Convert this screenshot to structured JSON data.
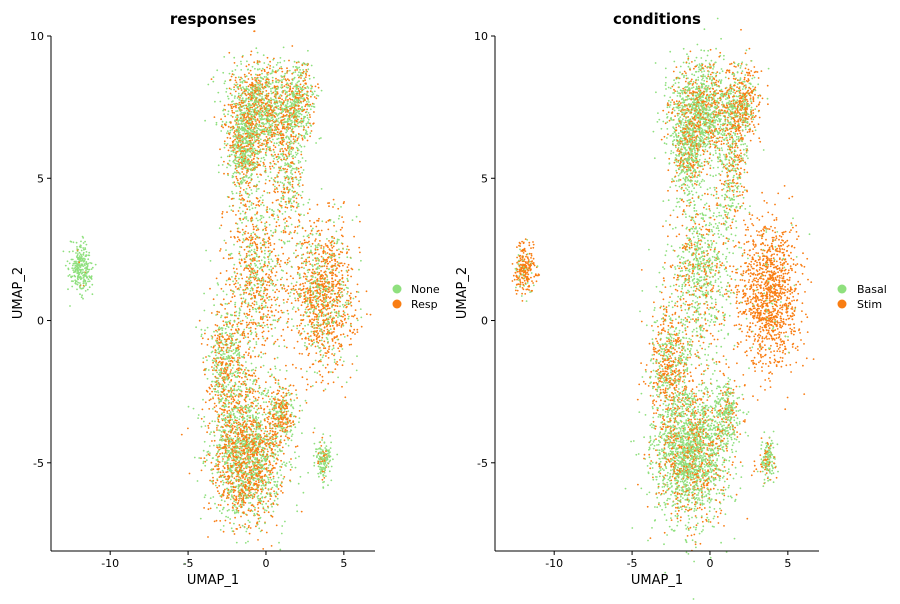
{
  "colors": {
    "green": "#8fe07e",
    "orange": "#f97d12"
  },
  "chart_data": [
    {
      "type": "scatter",
      "title": "responses",
      "xlabel": "UMAP_1",
      "ylabel": "UMAP_2",
      "xlim": [
        -13.8,
        7.0
      ],
      "ylim": [
        -8.1,
        10.0
      ],
      "xticks": [
        -10,
        -5,
        0,
        5
      ],
      "yticks": [
        -5,
        0,
        5,
        10
      ],
      "legend": "right",
      "series": [
        {
          "name": "None",
          "color": "#8fe07e"
        },
        {
          "name": "Resp",
          "color": "#f97d12"
        }
      ],
      "clusters": [
        {
          "name": "far-left island",
          "x": -11.9,
          "y": 1.8,
          "sx": 0.35,
          "sy": 0.45,
          "n": 260,
          "mix": 0.02
        },
        {
          "name": "top",
          "x": -0.4,
          "y": 7.4,
          "sx": 1.1,
          "sy": 0.85,
          "n": 1300,
          "mix": 0.45
        },
        {
          "name": "top-left lobe",
          "x": -1.4,
          "y": 5.9,
          "sx": 0.55,
          "sy": 0.8,
          "n": 520,
          "mix": 0.35
        },
        {
          "name": "top-right lobe",
          "x": 2.1,
          "y": 7.6,
          "sx": 0.55,
          "sy": 0.7,
          "n": 420,
          "mix": 0.4
        },
        {
          "name": "right neck",
          "x": 1.4,
          "y": 5.2,
          "sx": 0.5,
          "sy": 1.2,
          "n": 360,
          "mix": 0.5
        },
        {
          "name": "middle band",
          "x": -0.6,
          "y": 1.7,
          "sx": 1.0,
          "sy": 1.6,
          "n": 900,
          "mix": 0.6
        },
        {
          "name": "right blob",
          "x": 3.7,
          "y": 0.9,
          "sx": 1.0,
          "sy": 1.3,
          "n": 1200,
          "mix": 0.7
        },
        {
          "name": "lower-left arm",
          "x": -2.6,
          "y": -1.6,
          "sx": 0.7,
          "sy": 1.1,
          "n": 600,
          "mix": 0.45
        },
        {
          "name": "lower body",
          "x": -1.2,
          "y": -4.7,
          "sx": 1.2,
          "sy": 1.2,
          "n": 2100,
          "mix": 0.5
        },
        {
          "name": "lower right knob",
          "x": 1.1,
          "y": -3.2,
          "sx": 0.4,
          "sy": 0.5,
          "n": 260,
          "mix": 0.6
        },
        {
          "name": "small right island",
          "x": 3.7,
          "y": -4.9,
          "sx": 0.25,
          "sy": 0.35,
          "n": 160,
          "mix": 0.2
        }
      ]
    },
    {
      "type": "scatter",
      "title": "conditions",
      "xlabel": "UMAP_1",
      "ylabel": "UMAP_2",
      "xlim": [
        -13.8,
        7.0
      ],
      "ylim": [
        -8.1,
        10.0
      ],
      "xticks": [
        -10,
        -5,
        0,
        5
      ],
      "yticks": [
        -5,
        0,
        5,
        10
      ],
      "legend": "right",
      "series": [
        {
          "name": "Basal",
          "color": "#8fe07e"
        },
        {
          "name": "Stim",
          "color": "#f97d12"
        }
      ],
      "clusters": [
        {
          "name": "far-left island",
          "x": -11.9,
          "y": 1.8,
          "sx": 0.35,
          "sy": 0.45,
          "n": 260,
          "mix": 0.85
        },
        {
          "name": "top",
          "x": -0.4,
          "y": 7.4,
          "sx": 1.1,
          "sy": 0.85,
          "n": 1300,
          "mix": 0.35
        },
        {
          "name": "top-left lobe",
          "x": -1.4,
          "y": 5.9,
          "sx": 0.55,
          "sy": 0.8,
          "n": 520,
          "mix": 0.3
        },
        {
          "name": "top-right lobe",
          "x": 2.1,
          "y": 7.6,
          "sx": 0.55,
          "sy": 0.7,
          "n": 420,
          "mix": 0.65
        },
        {
          "name": "right neck",
          "x": 1.4,
          "y": 5.2,
          "sx": 0.5,
          "sy": 1.2,
          "n": 360,
          "mix": 0.4
        },
        {
          "name": "middle band",
          "x": -0.6,
          "y": 1.7,
          "sx": 1.0,
          "sy": 1.6,
          "n": 900,
          "mix": 0.35
        },
        {
          "name": "right blob",
          "x": 3.7,
          "y": 0.9,
          "sx": 1.0,
          "sy": 1.3,
          "n": 1200,
          "mix": 0.95
        },
        {
          "name": "lower-left arm",
          "x": -2.6,
          "y": -1.6,
          "sx": 0.7,
          "sy": 1.1,
          "n": 600,
          "mix": 0.55
        },
        {
          "name": "lower body",
          "x": -1.2,
          "y": -4.7,
          "sx": 1.2,
          "sy": 1.2,
          "n": 2100,
          "mix": 0.3
        },
        {
          "name": "lower right knob",
          "x": 1.1,
          "y": -3.2,
          "sx": 0.4,
          "sy": 0.5,
          "n": 260,
          "mix": 0.3
        },
        {
          "name": "small right island",
          "x": 3.7,
          "y": -4.9,
          "sx": 0.25,
          "sy": 0.35,
          "n": 160,
          "mix": 0.3
        }
      ]
    }
  ]
}
